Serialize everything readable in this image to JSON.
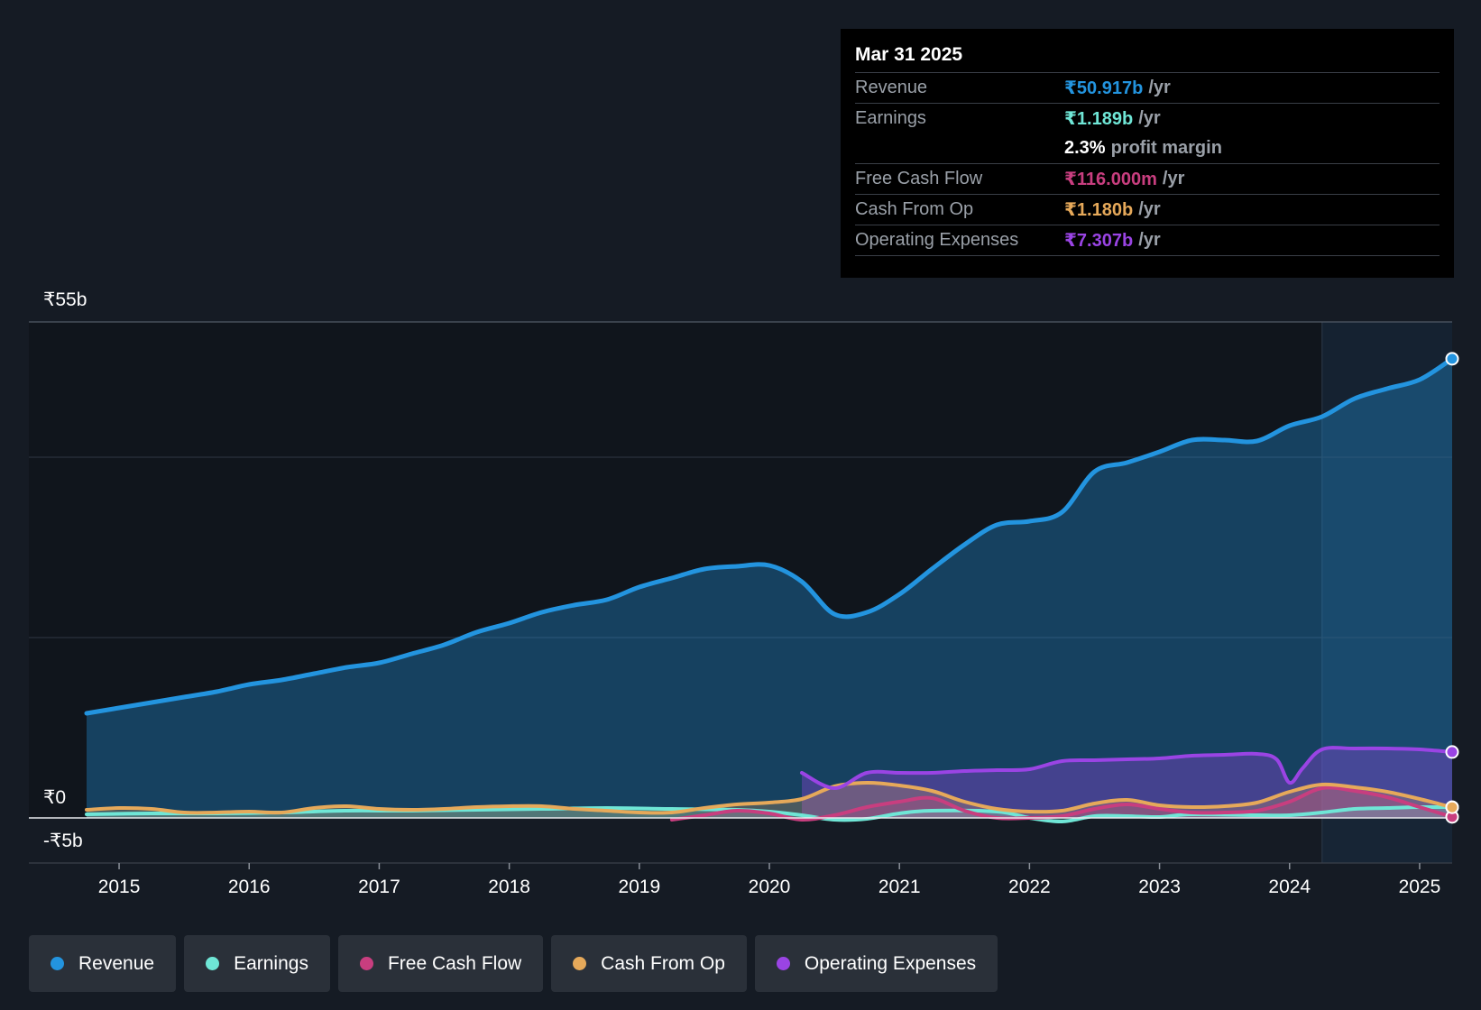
{
  "colors": {
    "revenue": "#2394df",
    "earnings": "#6fe6d6",
    "fcf": "#c83e7f",
    "cfo": "#e6a95a",
    "opex": "#9a44e4",
    "background": "#151b24",
    "past_shade": "#10151c",
    "forecast_shade": "#1a2e44"
  },
  "tooltip": {
    "date": "Mar 31 2025",
    "revenue_label": "Revenue",
    "revenue_value": "₹50.917b",
    "revenue_unit": "/yr",
    "earnings_label": "Earnings",
    "earnings_value": "₹1.189b",
    "earnings_unit": "/yr",
    "margin_value": "2.3%",
    "margin_label": "profit margin",
    "fcf_label": "Free Cash Flow",
    "fcf_value": "₹116.000m",
    "fcf_unit": "/yr",
    "cfo_label": "Cash From Op",
    "cfo_value": "₹1.180b",
    "cfo_unit": "/yr",
    "opex_label": "Operating Expenses",
    "opex_value": "₹7.307b",
    "opex_unit": "/yr"
  },
  "legend": [
    {
      "label": "Revenue",
      "color": "#2394df"
    },
    {
      "label": "Earnings",
      "color": "#6fe6d6"
    },
    {
      "label": "Free Cash Flow",
      "color": "#c83e7f"
    },
    {
      "label": "Cash From Op",
      "color": "#e6a95a"
    },
    {
      "label": "Operating Expenses",
      "color": "#9a44e4"
    }
  ],
  "chart_data": {
    "type": "line",
    "title": "",
    "xlabel": "",
    "ylabel": "",
    "xlim": [
      2014.75,
      2025.25
    ],
    "ylim": [
      -5,
      55
    ],
    "y_tick_labels": [
      {
        "value": 55,
        "label": "₹55b"
      },
      {
        "value": 0,
        "label": "₹0"
      },
      {
        "value": -5,
        "label": "-₹5b"
      }
    ],
    "x_ticks": [
      2015,
      2016,
      2017,
      2018,
      2019,
      2020,
      2021,
      2022,
      2023,
      2024,
      2025
    ],
    "x_tick_labels": [
      "2015",
      "2016",
      "2017",
      "2018",
      "2019",
      "2020",
      "2021",
      "2022",
      "2023",
      "2024",
      "2025"
    ],
    "highlight_start": 2024.25,
    "series": [
      {
        "name": "Revenue",
        "key": "revenue",
        "x": [
          2014.75,
          2015.0,
          2015.25,
          2015.5,
          2015.75,
          2016.0,
          2016.25,
          2016.5,
          2016.75,
          2017.0,
          2017.25,
          2017.5,
          2017.75,
          2018.0,
          2018.25,
          2018.5,
          2018.75,
          2019.0,
          2019.25,
          2019.5,
          2019.75,
          2020.0,
          2020.25,
          2020.5,
          2020.75,
          2021.0,
          2021.25,
          2021.5,
          2021.75,
          2022.0,
          2022.25,
          2022.5,
          2022.75,
          2023.0,
          2023.25,
          2023.5,
          2023.75,
          2024.0,
          2024.25,
          2024.5,
          2024.75,
          2025.0,
          2025.25
        ],
        "y": [
          11.6,
          12.2,
          12.8,
          13.4,
          14.0,
          14.8,
          15.3,
          16.0,
          16.7,
          17.2,
          18.2,
          19.2,
          20.6,
          21.6,
          22.8,
          23.6,
          24.2,
          25.6,
          26.6,
          27.6,
          27.9,
          28.0,
          26.2,
          22.6,
          22.8,
          24.8,
          27.6,
          30.3,
          32.5,
          32.9,
          33.9,
          38.4,
          39.4,
          40.6,
          41.9,
          41.9,
          41.8,
          43.5,
          44.5,
          46.5,
          47.6,
          48.6,
          50.917
        ]
      },
      {
        "name": "Earnings",
        "key": "earnings",
        "x": [
          2014.75,
          2015.25,
          2015.75,
          2016.25,
          2016.75,
          2017.25,
          2017.75,
          2018.25,
          2018.75,
          2019.25,
          2019.75,
          2020.0,
          2020.25,
          2020.5,
          2020.75,
          2021.0,
          2021.25,
          2021.75,
          2022.0,
          2022.25,
          2022.5,
          2022.75,
          2023.0,
          2023.25,
          2023.75,
          2024.0,
          2024.25,
          2024.5,
          2024.75,
          2025.0,
          2025.25
        ],
        "y": [
          0.4,
          0.5,
          0.5,
          0.6,
          0.8,
          0.8,
          0.9,
          1.0,
          1.1,
          1.0,
          0.9,
          0.7,
          0.3,
          -0.2,
          -0.1,
          0.5,
          0.8,
          0.7,
          0.0,
          -0.4,
          0.2,
          0.2,
          0.1,
          0.4,
          0.3,
          0.3,
          0.6,
          1.0,
          1.1,
          1.2,
          1.189
        ]
      },
      {
        "name": "Free Cash Flow",
        "key": "fcf",
        "x": [
          2019.25,
          2019.5,
          2019.75,
          2020.0,
          2020.25,
          2020.5,
          2020.75,
          2021.0,
          2021.25,
          2021.5,
          2021.75,
          2022.0,
          2022.25,
          2022.5,
          2022.75,
          2023.0,
          2023.25,
          2023.5,
          2023.75,
          2024.0,
          2024.25,
          2024.5,
          2024.75,
          2025.0,
          2025.25
        ],
        "y": [
          -0.2,
          0.3,
          0.8,
          0.5,
          -0.2,
          0.3,
          1.2,
          1.8,
          2.2,
          0.8,
          0.0,
          0.0,
          0.2,
          1.0,
          1.5,
          1.0,
          0.6,
          0.6,
          0.8,
          1.8,
          3.3,
          3.0,
          2.3,
          1.2,
          0.116
        ]
      },
      {
        "name": "Cash From Op",
        "key": "cfo",
        "x": [
          2014.75,
          2015.0,
          2015.25,
          2015.5,
          2015.75,
          2016.0,
          2016.25,
          2016.5,
          2016.75,
          2017.0,
          2017.25,
          2017.5,
          2017.75,
          2018.0,
          2018.25,
          2018.5,
          2018.75,
          2019.0,
          2019.25,
          2019.5,
          2019.75,
          2020.0,
          2020.25,
          2020.5,
          2020.75,
          2021.0,
          2021.25,
          2021.5,
          2021.75,
          2022.0,
          2022.25,
          2022.5,
          2022.75,
          2023.0,
          2023.25,
          2023.5,
          2023.75,
          2024.0,
          2024.25,
          2024.5,
          2024.75,
          2025.0,
          2025.25
        ],
        "y": [
          0.9,
          1.1,
          1.0,
          0.6,
          0.6,
          0.7,
          0.6,
          1.1,
          1.3,
          1.0,
          0.9,
          1.0,
          1.2,
          1.3,
          1.3,
          1.0,
          0.8,
          0.6,
          0.6,
          1.1,
          1.5,
          1.7,
          2.1,
          3.5,
          3.9,
          3.6,
          3.0,
          1.8,
          1.0,
          0.7,
          0.8,
          1.6,
          2.0,
          1.4,
          1.2,
          1.3,
          1.7,
          2.9,
          3.7,
          3.4,
          2.9,
          2.1,
          1.18
        ]
      },
      {
        "name": "Operating Expenses",
        "key": "opex",
        "x": [
          2020.25,
          2020.5,
          2020.75,
          2021.0,
          2021.25,
          2021.5,
          2021.75,
          2022.0,
          2022.25,
          2022.5,
          2022.75,
          2023.0,
          2023.25,
          2023.5,
          2023.75,
          2023.9,
          2024.0,
          2024.1,
          2024.25,
          2024.5,
          2024.75,
          2025.0,
          2025.25
        ],
        "y": [
          5.0,
          3.3,
          5.0,
          5.0,
          5.0,
          5.2,
          5.3,
          5.4,
          6.3,
          6.4,
          6.5,
          6.6,
          6.9,
          7.0,
          7.1,
          6.5,
          3.9,
          5.5,
          7.6,
          7.7,
          7.7,
          7.6,
          7.307
        ]
      }
    ]
  }
}
